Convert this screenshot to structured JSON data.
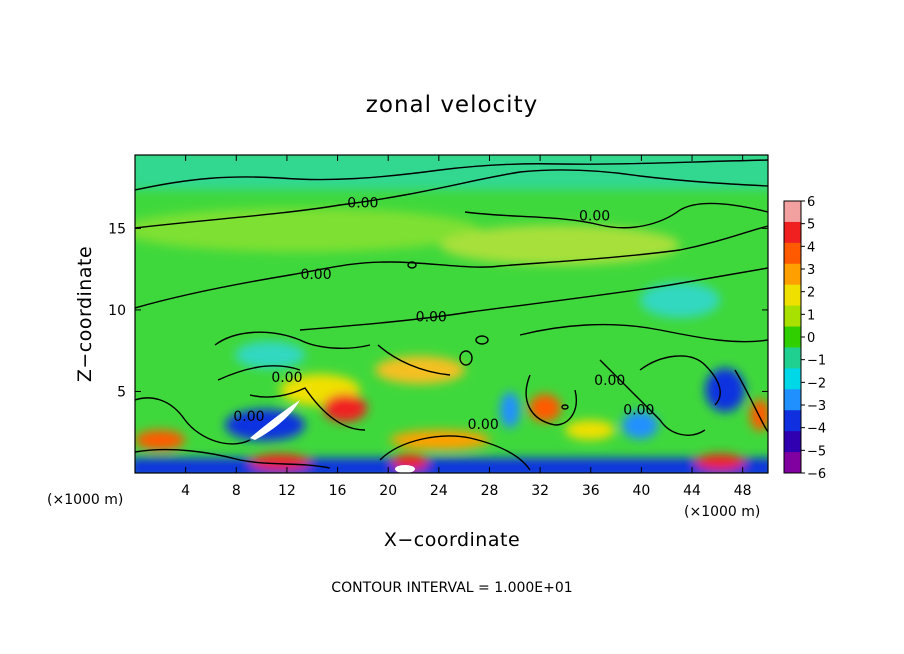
{
  "chart_data": {
    "type": "heatmap",
    "title": "zonal velocity",
    "xlabel": "X−coordinate",
    "ylabel": "Z−coordinate",
    "x_unit_label_left": "(×1000 m)",
    "x_unit_label_right": "(×1000 m)",
    "xlim": [
      0,
      50
    ],
    "ylim": [
      0,
      19.5
    ],
    "x_ticks": [
      4,
      8,
      12,
      16,
      20,
      24,
      28,
      32,
      36,
      40,
      44,
      48
    ],
    "y_ticks": [
      5,
      10,
      15
    ],
    "colorbar": {
      "levels": [
        6,
        5,
        4,
        3,
        2,
        1,
        0,
        -1,
        -2,
        -3,
        -4,
        -5,
        -6
      ],
      "labels": [
        "6",
        "5",
        "4",
        "3",
        "2",
        "1",
        "0",
        "−1",
        "−2",
        "−3",
        "−4",
        "−5",
        "−6"
      ],
      "colors": [
        "#f2a0a0",
        "#f02020",
        "#ff5a00",
        "#ffa000",
        "#f0e000",
        "#a8e000",
        "#30d000",
        "#20d090",
        "#00d8e8",
        "#2090ff",
        "#1030e0",
        "#3000b0",
        "#8000a0"
      ]
    },
    "contour_labels": [
      {
        "text": "0.00",
        "x": 18,
        "z": 16.6
      },
      {
        "text": "0.00",
        "x": 36.3,
        "z": 15.8
      },
      {
        "text": "0.00",
        "x": 14.3,
        "z": 12.2
      },
      {
        "text": "0.00",
        "x": 23.4,
        "z": 9.6
      },
      {
        "text": "0.00",
        "x": 12,
        "z": 5.9
      },
      {
        "text": "0.00",
        "x": 9,
        "z": 3.5
      },
      {
        "text": "0.00",
        "x": 27.5,
        "z": 3.0
      },
      {
        "text": "0.00",
        "x": 37.5,
        "z": 5.7
      },
      {
        "text": "0.00",
        "x": 39.8,
        "z": 3.9
      }
    ],
    "note": "CONTOUR INTERVAL = 1.000E+01"
  }
}
